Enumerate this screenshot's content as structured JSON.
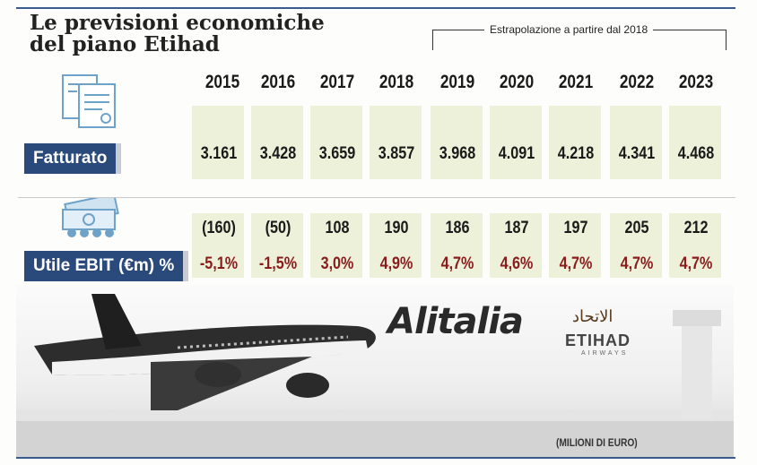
{
  "title_line1": "Le previsioni economiche",
  "title_line2": "del piano Etihad",
  "extrapolation_note": "Estrapolazione a partire dal 2018",
  "years": [
    "2015",
    "2016",
    "2017",
    "2018",
    "2019",
    "2020",
    "2021",
    "2022",
    "2023"
  ],
  "fatturato": {
    "label": "Fatturato",
    "values": [
      "3.161",
      "3.428",
      "3.659",
      "3.857",
      "3.968",
      "4.091",
      "4.218",
      "4.341",
      "4.468"
    ]
  },
  "ebit": {
    "label": "Utile EBIT (€m) %",
    "values": [
      "(160)",
      "(50)",
      "108",
      "190",
      "186",
      "187",
      "197",
      "205",
      "212"
    ],
    "percent": [
      "-5,1%",
      "-1,5%",
      "3,0%",
      "4,9%",
      "4,7%",
      "4,6%",
      "4,7%",
      "4,7%",
      "4,7%"
    ]
  },
  "logos": {
    "alitalia": "Alitalia",
    "etihad": "ETIHAD",
    "etihad_arabic": "الاتحاد",
    "etihad_sub": "AIRWAYS"
  },
  "unit_note": "(MILIONI DI EURO)",
  "colors": {
    "label_bg": "#2b4a7c",
    "percent_text": "#8a1c1c",
    "cell_bg": "#ecefd6"
  },
  "icons": [
    "document-icon",
    "banknotes-icon"
  ]
}
